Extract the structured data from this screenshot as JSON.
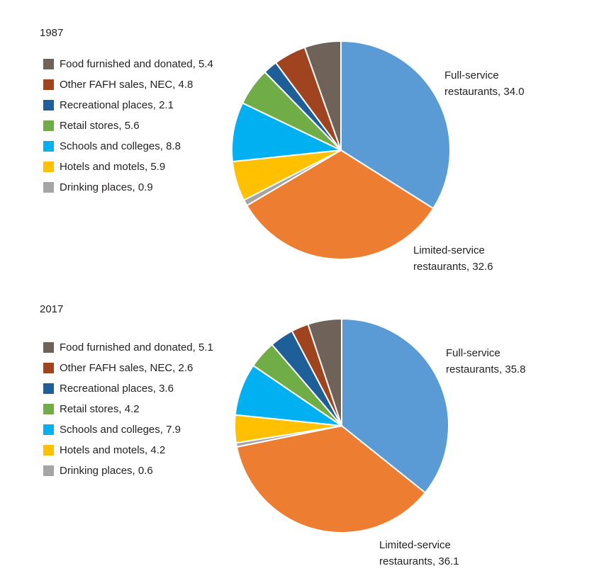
{
  "chart_data": [
    {
      "type": "pie",
      "title": "1987",
      "colors": [
        "#5b9bd5",
        "#ed7d31",
        "#a5a5a5",
        "#ffc000",
        "#00b0f0",
        "#70ad47",
        "#1f5f99",
        "#a0431f",
        "#6e6259"
      ],
      "slices": [
        {
          "label": "Full-service restaurants",
          "value": 34.0
        },
        {
          "label": "Limited-service restaurants",
          "value": 32.6
        },
        {
          "label": "Drinking places",
          "value": 0.9
        },
        {
          "label": "Hotels and motels",
          "value": 5.9
        },
        {
          "label": "Schools and colleges",
          "value": 8.8
        },
        {
          "label": "Retail stores",
          "value": 5.6
        },
        {
          "label": "Recreational places",
          "value": 2.1
        },
        {
          "label": "Other FAFH sales, NEC",
          "value": 4.8
        },
        {
          "label": "Food furnished and donated",
          "value": 5.4
        }
      ],
      "legend": [
        "Food furnished and donated, 5.4",
        "Other FAFH sales, NEC, 4.8",
        "Recreational places, 2.1",
        "Retail stores, 5.6",
        "Schools and colleges, 8.8",
        "Hotels and motels, 5.9",
        "Drinking places, 0.9"
      ],
      "callouts": {
        "full_service": [
          "Full-service",
          "restaurants, 34.0"
        ],
        "limited_service": [
          "Limited-service",
          "restaurants, 32.6"
        ]
      }
    },
    {
      "type": "pie",
      "title": "2017",
      "colors": [
        "#5b9bd5",
        "#ed7d31",
        "#a5a5a5",
        "#ffc000",
        "#00b0f0",
        "#70ad47",
        "#1f5f99",
        "#a0431f",
        "#6e6259"
      ],
      "slices": [
        {
          "label": "Full-service restaurants",
          "value": 35.8
        },
        {
          "label": "Limited-service restaurants",
          "value": 36.1
        },
        {
          "label": "Drinking places",
          "value": 0.6
        },
        {
          "label": "Hotels and motels",
          "value": 4.2
        },
        {
          "label": "Schools and colleges",
          "value": 7.9
        },
        {
          "label": "Retail stores",
          "value": 4.2
        },
        {
          "label": "Recreational places",
          "value": 3.6
        },
        {
          "label": "Other FAFH sales, NEC",
          "value": 2.6
        },
        {
          "label": "Food furnished and donated",
          "value": 5.1
        }
      ],
      "legend": [
        "Food furnished and donated, 5.1",
        "Other FAFH sales, NEC, 2.6",
        "Recreational places, 3.6",
        "Retail stores, 4.2",
        "Schools and colleges, 7.9",
        "Hotels and motels, 4.2",
        "Drinking places, 0.6"
      ],
      "callouts": {
        "full_service": [
          "Full-service",
          "restaurants, 35.8"
        ],
        "limited_service": [
          "Limited-service",
          "restaurants, 36.1"
        ]
      }
    }
  ]
}
